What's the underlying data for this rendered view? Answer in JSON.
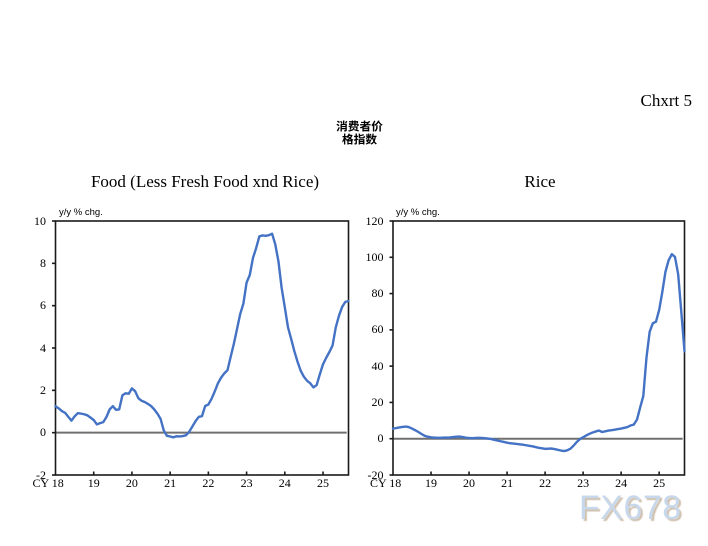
{
  "page": {
    "background": "#ffffff",
    "chart_number_label": "Chxrt 5",
    "main_title": "消费者价格指数",
    "main_title_lines": [
      "消费者价",
      "格指数"
    ],
    "watermark": "FX678",
    "watermark_color": "#c8d8ec",
    "watermark_shadow_color": "#ac9070"
  },
  "chart_data": [
    {
      "id": "food",
      "type": "line",
      "title": "Food (Less Fresh Food xnd Rice)",
      "axis_unit_label": "y/y % chg.",
      "x_axis_prefix": "CY",
      "x_first_tick_label": "CY 18",
      "x_tick_labels": [
        "18",
        "19",
        "20",
        "21",
        "22",
        "23",
        "24",
        "25"
      ],
      "x_unit": "month",
      "x_range": [
        "2018-01",
        "2025-09"
      ],
      "ylim": [
        -2,
        10
      ],
      "y_ticks": [
        10,
        8,
        6,
        4,
        2,
        0,
        -2
      ],
      "grid": false,
      "zero_line": true,
      "legend_position": "none",
      "line_color": "#4472C4",
      "values": [
        1.25,
        1.15,
        1.02,
        0.94,
        0.75,
        0.57,
        0.77,
        0.92,
        0.9,
        0.87,
        0.82,
        0.71,
        0.6,
        0.39,
        0.45,
        0.5,
        0.74,
        1.1,
        1.25,
        1.08,
        1.1,
        1.76,
        1.86,
        1.84,
        2.09,
        1.96,
        1.63,
        1.51,
        1.45,
        1.36,
        1.26,
        1.1,
        0.9,
        0.65,
        0.1,
        -0.15,
        -0.18,
        -0.22,
        -0.17,
        -0.18,
        -0.16,
        -0.12,
        0.05,
        0.3,
        0.55,
        0.75,
        0.78,
        1.26,
        1.33,
        1.6,
        1.95,
        2.33,
        2.6,
        2.8,
        2.95,
        3.58,
        4.2,
        4.9,
        5.61,
        6.1,
        7.09,
        7.45,
        8.25,
        8.72,
        9.27,
        9.32,
        9.3,
        9.33,
        9.4,
        8.9,
        8.1,
        6.85,
        5.92,
        4.98,
        4.43,
        3.85,
        3.35,
        2.92,
        2.64,
        2.45,
        2.33,
        2.14,
        2.25,
        2.76,
        3.23,
        3.54,
        3.81,
        4.12,
        4.97,
        5.52,
        5.94,
        6.18,
        6.22
      ]
    },
    {
      "id": "rice",
      "type": "line",
      "title": "Rice",
      "axis_unit_label": "y/y % chg.",
      "x_axis_prefix": "CY",
      "x_first_tick_label": "CY 18",
      "x_tick_labels": [
        "18",
        "19",
        "20",
        "21",
        "22",
        "23",
        "24",
        "25"
      ],
      "x_unit": "month",
      "x_range": [
        "2018-01",
        "2025-09"
      ],
      "ylim": [
        -20,
        120
      ],
      "y_ticks": [
        120,
        100,
        80,
        60,
        40,
        20,
        0,
        -20
      ],
      "grid": false,
      "zero_line": true,
      "legend_position": "none",
      "line_color": "#4472C4",
      "values": [
        5.5,
        5.9,
        6.2,
        6.5,
        6.7,
        6.4,
        5.6,
        4.7,
        3.7,
        2.6,
        1.6,
        1.1,
        0.8,
        0.6,
        0.5,
        0.5,
        0.6,
        0.6,
        0.7,
        0.9,
        1.1,
        1.2,
        0.9,
        0.6,
        0.4,
        0.3,
        0.4,
        0.5,
        0.4,
        0.3,
        0.1,
        -0.2,
        -0.6,
        -1.0,
        -1.4,
        -1.8,
        -2.2,
        -2.5,
        -2.7,
        -2.9,
        -3.1,
        -3.3,
        -3.6,
        -3.9,
        -4.2,
        -4.6,
        -5.0,
        -5.3,
        -5.6,
        -5.5,
        -5.4,
        -5.7,
        -6.1,
        -6.5,
        -6.8,
        -6.4,
        -5.5,
        -3.8,
        -1.8,
        -0.2,
        0.8,
        1.8,
        2.7,
        3.4,
        4.0,
        4.5,
        3.7,
        4.1,
        4.5,
        4.7,
        5.0,
        5.3,
        5.6,
        6.0,
        6.4,
        7.3,
        7.8,
        10.5,
        17.2,
        23.6,
        44.7,
        58.9,
        63.6,
        64.5,
        70.9,
        80.9,
        92.1,
        98.4,
        101.7,
        100.2,
        90.7,
        69.7,
        48.2
      ]
    }
  ]
}
